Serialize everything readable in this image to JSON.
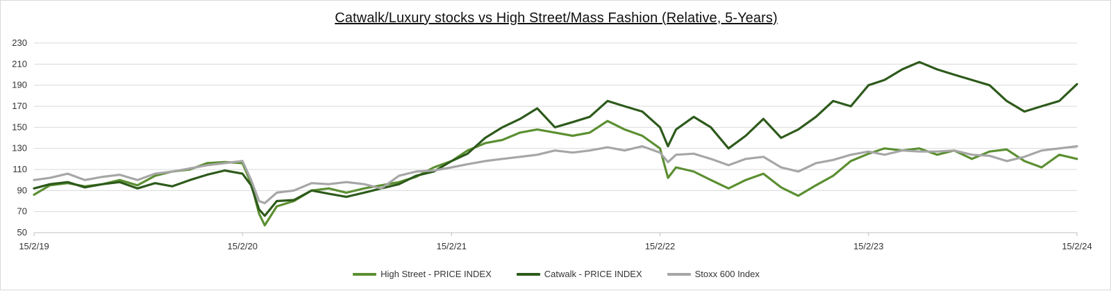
{
  "chart_data": {
    "type": "line",
    "title": "Catwalk/Luxury stocks vs High Street/Mass Fashion (Relative, 5-Years)",
    "xlabel": "",
    "ylabel": "",
    "x_ticks": [
      "15/2/19",
      "15/2/20",
      "15/2/21",
      "15/2/22",
      "15/2/23",
      "15/2/24"
    ],
    "xlim": [
      "15/2/19",
      "15/2/24"
    ],
    "y_ticks": [
      50,
      70,
      90,
      110,
      130,
      150,
      170,
      190,
      210,
      230
    ],
    "ylim": [
      50,
      230
    ],
    "grid": "horizontal",
    "legend": "bottom",
    "series": [
      {
        "name": "High Street - PRICE INDEX",
        "color": "#5b8f31",
        "points": [
          [
            "15/2/19",
            86
          ],
          [
            "15/3/19",
            95
          ],
          [
            "15/4/19",
            97
          ],
          [
            "15/5/19",
            94
          ],
          [
            "15/6/19",
            96
          ],
          [
            "15/7/19",
            100
          ],
          [
            "15/8/19",
            95
          ],
          [
            "15/9/19",
            104
          ],
          [
            "15/10/19",
            108
          ],
          [
            "15/11/19",
            110
          ],
          [
            "15/12/19",
            116
          ],
          [
            "15/1/20",
            117
          ],
          [
            "15/2/20",
            116
          ],
          [
            "1/3/20",
            97
          ],
          [
            "15/3/20",
            68
          ],
          [
            "25/3/20",
            57
          ],
          [
            "15/4/20",
            75
          ],
          [
            "15/5/20",
            80
          ],
          [
            "15/6/20",
            90
          ],
          [
            "15/7/20",
            92
          ],
          [
            "15/8/20",
            88
          ],
          [
            "15/9/20",
            92
          ],
          [
            "15/10/20",
            95
          ],
          [
            "15/11/20",
            98
          ],
          [
            "15/12/20",
            103
          ],
          [
            "15/1/21",
            112
          ],
          [
            "15/2/21",
            118
          ],
          [
            "15/3/21",
            128
          ],
          [
            "15/4/21",
            135
          ],
          [
            "15/5/21",
            138
          ],
          [
            "15/6/21",
            145
          ],
          [
            "15/7/21",
            148
          ],
          [
            "15/8/21",
            145
          ],
          [
            "15/9/21",
            142
          ],
          [
            "15/10/21",
            145
          ],
          [
            "15/11/21",
            156
          ],
          [
            "15/12/21",
            148
          ],
          [
            "15/1/22",
            142
          ],
          [
            "15/2/22",
            130
          ],
          [
            "1/3/22",
            102
          ],
          [
            "15/3/22",
            112
          ],
          [
            "15/4/22",
            108
          ],
          [
            "15/5/22",
            100
          ],
          [
            "15/6/22",
            92
          ],
          [
            "15/7/22",
            100
          ],
          [
            "15/8/22",
            106
          ],
          [
            "15/9/22",
            93
          ],
          [
            "15/10/22",
            85
          ],
          [
            "15/11/22",
            95
          ],
          [
            "15/12/22",
            104
          ],
          [
            "15/1/23",
            118
          ],
          [
            "15/2/23",
            125
          ],
          [
            "15/3/23",
            130
          ],
          [
            "15/4/23",
            128
          ],
          [
            "15/5/23",
            130
          ],
          [
            "15/6/23",
            124
          ],
          [
            "15/7/23",
            128
          ],
          [
            "15/8/23",
            120
          ],
          [
            "15/9/23",
            127
          ],
          [
            "15/10/23",
            129
          ],
          [
            "15/11/23",
            118
          ],
          [
            "15/12/23",
            112
          ],
          [
            "15/1/24",
            124
          ],
          [
            "15/2/24",
            120
          ]
        ]
      },
      {
        "name": "Catwalk - PRICE INDEX",
        "color": "#2d5a1b",
        "points": [
          [
            "15/2/19",
            92
          ],
          [
            "15/3/19",
            96
          ],
          [
            "15/4/19",
            98
          ],
          [
            "15/5/19",
            93
          ],
          [
            "15/6/19",
            96
          ],
          [
            "15/7/19",
            98
          ],
          [
            "15/8/19",
            92
          ],
          [
            "15/9/19",
            97
          ],
          [
            "15/10/19",
            94
          ],
          [
            "15/11/19",
            100
          ],
          [
            "15/12/19",
            105
          ],
          [
            "15/1/20",
            109
          ],
          [
            "15/2/20",
            106
          ],
          [
            "1/3/20",
            95
          ],
          [
            "15/3/20",
            72
          ],
          [
            "25/3/20",
            66
          ],
          [
            "15/4/20",
            80
          ],
          [
            "15/5/20",
            81
          ],
          [
            "15/6/20",
            90
          ],
          [
            "15/7/20",
            87
          ],
          [
            "15/8/20",
            84
          ],
          [
            "15/9/20",
            88
          ],
          [
            "15/10/20",
            92
          ],
          [
            "15/11/20",
            96
          ],
          [
            "15/12/20",
            104
          ],
          [
            "15/1/21",
            108
          ],
          [
            "15/2/21",
            118
          ],
          [
            "15/3/21",
            125
          ],
          [
            "15/4/21",
            140
          ],
          [
            "15/5/21",
            150
          ],
          [
            "15/6/21",
            158
          ],
          [
            "15/7/21",
            168
          ],
          [
            "15/8/21",
            150
          ],
          [
            "15/9/21",
            155
          ],
          [
            "15/10/21",
            160
          ],
          [
            "15/11/21",
            175
          ],
          [
            "15/12/21",
            170
          ],
          [
            "15/1/22",
            165
          ],
          [
            "15/2/22",
            150
          ],
          [
            "1/3/22",
            132
          ],
          [
            "15/3/22",
            148
          ],
          [
            "15/4/22",
            160
          ],
          [
            "15/5/22",
            150
          ],
          [
            "15/6/22",
            130
          ],
          [
            "15/7/22",
            142
          ],
          [
            "15/8/22",
            158
          ],
          [
            "15/9/22",
            140
          ],
          [
            "15/10/22",
            148
          ],
          [
            "15/11/22",
            160
          ],
          [
            "15/12/22",
            175
          ],
          [
            "15/1/23",
            170
          ],
          [
            "15/2/23",
            190
          ],
          [
            "15/3/23",
            195
          ],
          [
            "15/4/23",
            205
          ],
          [
            "15/5/23",
            212
          ],
          [
            "15/6/23",
            205
          ],
          [
            "15/7/23",
            200
          ],
          [
            "15/8/23",
            195
          ],
          [
            "15/9/23",
            190
          ],
          [
            "15/10/23",
            175
          ],
          [
            "15/11/23",
            165
          ],
          [
            "15/12/23",
            170
          ],
          [
            "15/1/24",
            175
          ],
          [
            "15/2/24",
            191
          ]
        ]
      },
      {
        "name": "Stoxx 600 Index",
        "color": "#a6a6a6",
        "points": [
          [
            "15/2/19",
            100
          ],
          [
            "15/3/19",
            102
          ],
          [
            "15/4/19",
            106
          ],
          [
            "15/5/19",
            100
          ],
          [
            "15/6/19",
            103
          ],
          [
            "15/7/19",
            105
          ],
          [
            "15/8/19",
            100
          ],
          [
            "15/9/19",
            106
          ],
          [
            "15/10/19",
            108
          ],
          [
            "15/11/19",
            111
          ],
          [
            "15/12/19",
            114
          ],
          [
            "15/1/20",
            116
          ],
          [
            "15/2/20",
            118
          ],
          [
            "1/3/20",
            100
          ],
          [
            "15/3/20",
            80
          ],
          [
            "25/3/20",
            78
          ],
          [
            "15/4/20",
            88
          ],
          [
            "15/5/20",
            90
          ],
          [
            "15/6/20",
            97
          ],
          [
            "15/7/20",
            96
          ],
          [
            "15/8/20",
            98
          ],
          [
            "15/9/20",
            96
          ],
          [
            "15/10/20",
            92
          ],
          [
            "15/11/20",
            104
          ],
          [
            "15/12/20",
            108
          ],
          [
            "15/1/21",
            109
          ],
          [
            "15/2/21",
            112
          ],
          [
            "15/3/21",
            115
          ],
          [
            "15/4/21",
            118
          ],
          [
            "15/5/21",
            120
          ],
          [
            "15/6/21",
            122
          ],
          [
            "15/7/21",
            124
          ],
          [
            "15/8/21",
            128
          ],
          [
            "15/9/21",
            126
          ],
          [
            "15/10/21",
            128
          ],
          [
            "15/11/21",
            131
          ],
          [
            "15/12/21",
            128
          ],
          [
            "15/1/22",
            132
          ],
          [
            "15/2/22",
            126
          ],
          [
            "1/3/22",
            117
          ],
          [
            "15/3/22",
            124
          ],
          [
            "15/4/22",
            125
          ],
          [
            "15/5/22",
            120
          ],
          [
            "15/6/22",
            114
          ],
          [
            "15/7/22",
            120
          ],
          [
            "15/8/22",
            122
          ],
          [
            "15/9/22",
            112
          ],
          [
            "15/10/22",
            108
          ],
          [
            "15/11/22",
            116
          ],
          [
            "15/12/22",
            119
          ],
          [
            "15/1/23",
            124
          ],
          [
            "15/2/23",
            127
          ],
          [
            "15/3/23",
            124
          ],
          [
            "15/4/23",
            128
          ],
          [
            "15/5/23",
            127
          ],
          [
            "15/6/23",
            127
          ],
          [
            "15/7/23",
            128
          ],
          [
            "15/8/23",
            124
          ],
          [
            "15/9/23",
            123
          ],
          [
            "15/10/23",
            118
          ],
          [
            "15/11/23",
            122
          ],
          [
            "15/12/23",
            128
          ],
          [
            "15/1/24",
            130
          ],
          [
            "15/2/24",
            132
          ]
        ]
      }
    ]
  }
}
